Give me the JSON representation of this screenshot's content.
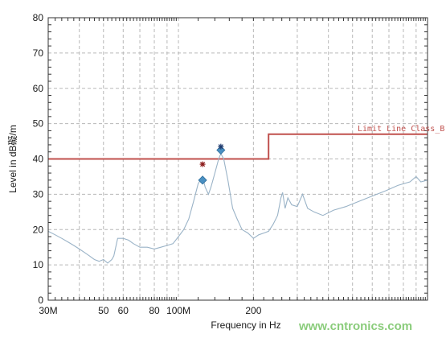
{
  "chart_data": {
    "type": "line",
    "xlabel": "Frequency in Hz",
    "ylabel": "Level in dB礙/m",
    "xscale": "log",
    "xlim": [
      30,
      1000
    ],
    "ylim": [
      0,
      80
    ],
    "grid": true,
    "x_tick_labels": [
      {
        "value": 30,
        "label": "30M"
      },
      {
        "value": 50,
        "label": "50"
      },
      {
        "value": 60,
        "label": "60"
      },
      {
        "value": 80,
        "label": "80"
      },
      {
        "value": 100,
        "label": "100M"
      },
      {
        "value": 200,
        "label": "200"
      }
    ],
    "y_ticks": [
      0,
      10,
      20,
      30,
      40,
      50,
      60,
      70,
      80
    ],
    "limit_line": {
      "name": "Limit Line Class_B",
      "color": "#c0504d",
      "segments": [
        {
          "x": [
            30,
            230
          ],
          "y": 40
        },
        {
          "x": [
            230,
            1000
          ],
          "y": 47
        }
      ]
    },
    "series": [
      {
        "color": "#9ab3c7",
        "points": [
          [
            30,
            19.5
          ],
          [
            32,
            18.5
          ],
          [
            34,
            17.5
          ],
          [
            36,
            16.5
          ],
          [
            38,
            15.5
          ],
          [
            40,
            14.5
          ],
          [
            42,
            13.5
          ],
          [
            44,
            12.5
          ],
          [
            46,
            11.5
          ],
          [
            48,
            11.0
          ],
          [
            50,
            11.5
          ],
          [
            52,
            10.5
          ],
          [
            54,
            11.5
          ],
          [
            55,
            12.5
          ],
          [
            57,
            17.5
          ],
          [
            60,
            17.5
          ],
          [
            63,
            17.0
          ],
          [
            66,
            16.0
          ],
          [
            70,
            15.0
          ],
          [
            75,
            15.0
          ],
          [
            80,
            14.5
          ],
          [
            85,
            15.0
          ],
          [
            90,
            15.5
          ],
          [
            95,
            16.0
          ],
          [
            100,
            18.0
          ],
          [
            105,
            20.0
          ],
          [
            110,
            23.0
          ],
          [
            115,
            28.0
          ],
          [
            120,
            33.0
          ],
          [
            125,
            35.0
          ],
          [
            128,
            32.0
          ],
          [
            132,
            30.0
          ],
          [
            135,
            32.0
          ],
          [
            140,
            36.0
          ],
          [
            145,
            40.0
          ],
          [
            148,
            41.5
          ],
          [
            152,
            40.0
          ],
          [
            158,
            34.0
          ],
          [
            165,
            26.0
          ],
          [
            172,
            23.0
          ],
          [
            180,
            20.0
          ],
          [
            190,
            19.0
          ],
          [
            200,
            17.5
          ],
          [
            210,
            18.5
          ],
          [
            220,
            19.0
          ],
          [
            230,
            19.5
          ],
          [
            240,
            21.5
          ],
          [
            250,
            24.0
          ],
          [
            258,
            29.0
          ],
          [
            262,
            30.5
          ],
          [
            268,
            26.0
          ],
          [
            275,
            29.0
          ],
          [
            285,
            27.0
          ],
          [
            300,
            26.5
          ],
          [
            315,
            30.0
          ],
          [
            330,
            26.0
          ],
          [
            350,
            25.0
          ],
          [
            380,
            24.0
          ],
          [
            420,
            25.5
          ],
          [
            470,
            26.5
          ],
          [
            530,
            28.0
          ],
          [
            600,
            29.5
          ],
          [
            680,
            31.0
          ],
          [
            760,
            32.5
          ],
          [
            850,
            33.5
          ],
          [
            900,
            35.0
          ],
          [
            940,
            33.5
          ],
          [
            1000,
            34.0
          ]
        ]
      }
    ],
    "peak_markers": [
      {
        "x": 125,
        "y": 34,
        "color": "#4a90c2"
      },
      {
        "x": 148,
        "y": 42.5,
        "color": "#4a90c2"
      }
    ],
    "qp_markers": [
      {
        "x": 125,
        "y": 38.5,
        "color": "#8b1a1a"
      },
      {
        "x": 148,
        "y": 43.5,
        "color": "#1f3b6e"
      }
    ]
  },
  "watermark": {
    "text": "www.cntronics.com",
    "color": "#6dbf5a"
  }
}
